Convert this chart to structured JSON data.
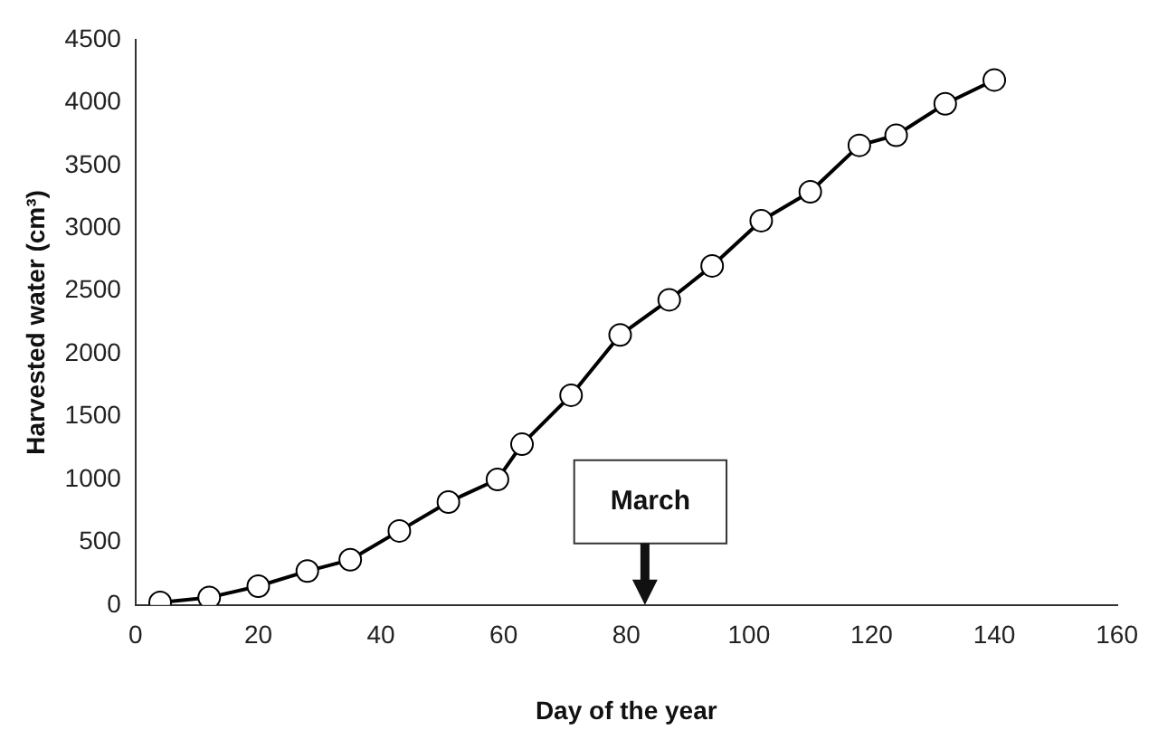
{
  "chart_data": {
    "type": "line",
    "xlabel": "Day of the year",
    "ylabel": "Harvested water (cm³)",
    "x": [
      4,
      12,
      20,
      28,
      35,
      43,
      51,
      59,
      63,
      71,
      79,
      87,
      94,
      102,
      110,
      118,
      124,
      132,
      140
    ],
    "series": [
      {
        "color": "#000000",
        "values": [
          20,
          60,
          150,
          270,
          360,
          590,
          820,
          1000,
          1280,
          1670,
          2150,
          2430,
          2700,
          3060,
          3290,
          3660,
          3740,
          3990,
          4180
        ]
      }
    ],
    "xlim": [
      0,
      160
    ],
    "xticks": [
      0,
      20,
      40,
      60,
      80,
      100,
      120,
      140,
      160
    ],
    "ylim": [
      0,
      4500
    ],
    "yticks": [
      0,
      500,
      1000,
      1500,
      2000,
      2500,
      3000,
      3500,
      4000,
      4500
    ],
    "grid": false,
    "legend": false,
    "marker": "circle",
    "line_style": "solid",
    "annotations": [
      "March"
    ]
  }
}
